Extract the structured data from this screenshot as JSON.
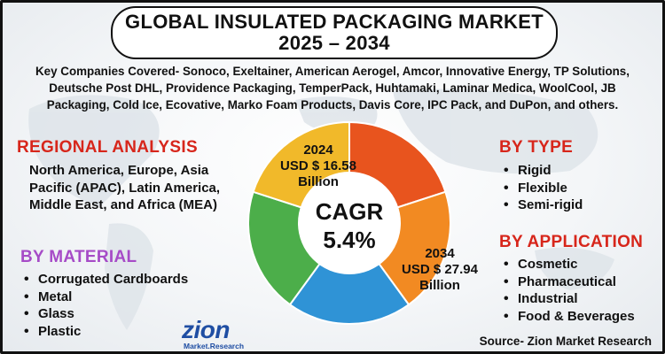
{
  "title": {
    "line1": "GLOBAL INSULATED PACKAGING MARKET",
    "line2": "2025 – 2034"
  },
  "companies_text": "Key Companies Covered- Sonoco, Exeltainer, American Aerogel, Amcor, Innovative Energy, TP Solutions, Deutsche Post DHL, Providence Packaging, TemperPack, Huhtamaki, Laminar Medica, WoolCool, JB Packaging, Cold Ice, Ecovative, Marko Foam Products, Davis Core, IPC Pack, and DuPon, and others.",
  "regional": {
    "heading": "REGIONAL ANALYSIS",
    "text": "North America, Europe, Asia Pacific (APAC), Latin America, Middle East, and Africa (MEA)"
  },
  "material": {
    "heading": "BY MATERIAL",
    "items": [
      "Corrugated Cardboards",
      "Metal",
      "Glass",
      "Plastic"
    ]
  },
  "type": {
    "heading": "BY TYPE",
    "items": [
      "Rigid",
      "Flexible",
      "Semi-rigid"
    ]
  },
  "application": {
    "heading": "BY APPLICATION",
    "items": [
      "Cosmetic",
      "Pharmaceutical",
      "Industrial",
      "Food & Beverages"
    ]
  },
  "chart_data": {
    "type": "pie",
    "title": "CAGR",
    "center_value": "5.4%",
    "slice_colors": [
      "#e8541e",
      "#f28a22",
      "#2f93d6",
      "#4cae4a",
      "#f1b92a"
    ],
    "slices": [
      1,
      1,
      1,
      1,
      1
    ],
    "label_2024": {
      "year": "2024",
      "value": "USD $ 16.58",
      "unit": "Billion"
    },
    "label_2034": {
      "year": "2034",
      "value": "USD $ 27.94",
      "unit": "Billion"
    }
  },
  "logo": {
    "name": "zion",
    "sub": "Market.Research"
  },
  "source": "Source- Zion Market Research",
  "colors": {
    "heading_red": "#d7261b",
    "heading_purple": "#a64bc7",
    "logo_blue": "#1f4ea3"
  }
}
